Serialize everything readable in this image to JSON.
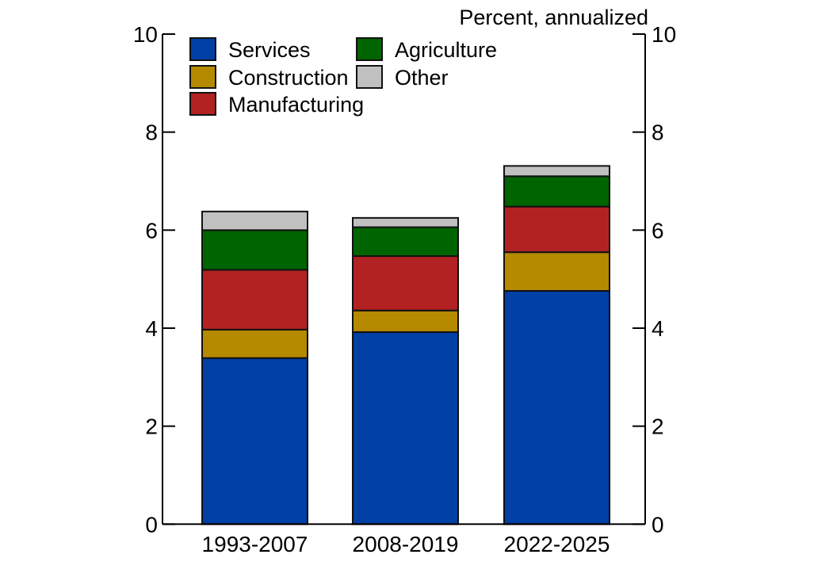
{
  "chart_data": {
    "type": "bar",
    "stacked": true,
    "title": "",
    "units_label": "Percent, annualized",
    "xlabel": "",
    "ylabel": "",
    "ylim": [
      0,
      10
    ],
    "yticks": [
      "0",
      "2",
      "4",
      "6",
      "8",
      "10"
    ],
    "grid": false,
    "legend_position": "top-left",
    "categories": [
      "1993-2007",
      "2008-2019",
      "2022-2025"
    ],
    "series": [
      {
        "name": "Services",
        "color": "#003fa3",
        "values": [
          3.39,
          3.92,
          4.76
        ]
      },
      {
        "name": "Construction",
        "color": "#b58900",
        "values": [
          0.58,
          0.44,
          0.79
        ]
      },
      {
        "name": "Manufacturing",
        "color": "#b22222",
        "values": [
          1.22,
          1.11,
          0.93
        ]
      },
      {
        "name": "Agriculture",
        "color": "#006400",
        "values": [
          0.81,
          0.59,
          0.62
        ]
      },
      {
        "name": "Other",
        "color": "#c0c0c0",
        "values": [
          0.38,
          0.19,
          0.21
        ]
      }
    ]
  }
}
